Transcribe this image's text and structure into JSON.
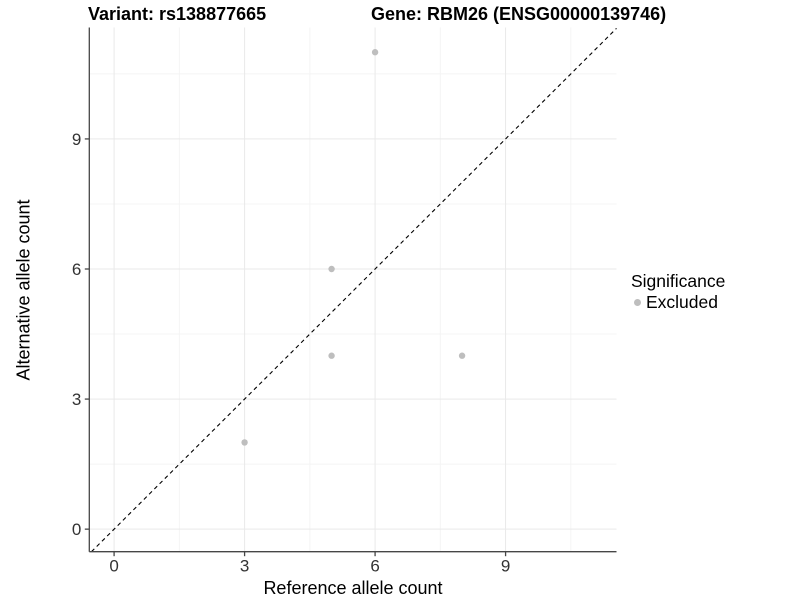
{
  "chart_data": {
    "type": "scatter",
    "title_left": "Variant: rs138877665",
    "title_right": "Gene: RBM26 (ENSG00000139746)",
    "xlabel": "Reference allele count",
    "ylabel": "Alternative allele count",
    "xlim": [
      -0.57,
      11.55
    ],
    "ylim": [
      -0.52,
      11.57
    ],
    "x_breaks": [
      0,
      3,
      6,
      9
    ],
    "y_breaks": [
      0,
      3,
      6,
      9
    ],
    "x_minor_breaks": [
      1.5,
      4.5,
      7.5,
      10.5
    ],
    "y_minor_breaks": [
      1.5,
      4.5,
      7.5,
      10.5
    ],
    "grid": true,
    "legend": {
      "title": "Significance",
      "position": "right",
      "entries": [
        {
          "label": "Excluded",
          "color": "#bebebe"
        }
      ]
    },
    "series": [
      {
        "name": "Excluded",
        "color": "#bebebe",
        "point_radius": 3.2,
        "points": [
          {
            "x": 3,
            "y": 2
          },
          {
            "x": 5,
            "y": 4
          },
          {
            "x": 5,
            "y": 6
          },
          {
            "x": 6,
            "y": 11
          },
          {
            "x": 8,
            "y": 4
          }
        ]
      }
    ],
    "reference_line": {
      "type": "y=x",
      "style": "dashed",
      "color": "#000000"
    }
  },
  "colors": {
    "background": "#ffffff",
    "point": "#bebebe",
    "axis_line": "#464646",
    "tick_mark": "#464646",
    "tick_text": "#333333",
    "grid_major": "#e9e9e9",
    "grid_minor": "#f4f4f4",
    "title_text": "#000000"
  }
}
